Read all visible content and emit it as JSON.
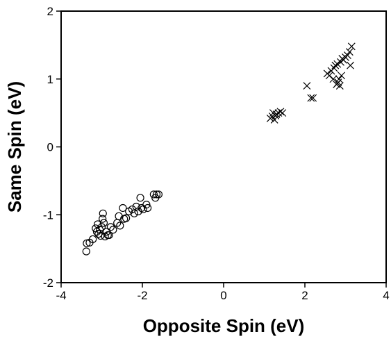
{
  "chart_data": {
    "type": "scatter",
    "title": "",
    "xlabel": "Opposite Spin (eV)",
    "ylabel": "Same Spin (eV)",
    "xlim": [
      -4,
      4
    ],
    "ylim": [
      -2,
      2
    ],
    "xticks": [
      -4,
      -2,
      0,
      2,
      4
    ],
    "yticks": [
      -2,
      -1,
      0,
      1,
      2
    ],
    "xtick_labels": [
      "-4",
      "-2",
      "0",
      "2",
      "4"
    ],
    "ytick_labels": [
      "-2",
      "-1",
      "0",
      "1",
      "2"
    ],
    "grid": false,
    "legend": "none",
    "series": [
      {
        "marker": "circle",
        "color": "#000000",
        "points": [
          [
            -3.38,
            -1.54
          ],
          [
            -3.37,
            -1.42
          ],
          [
            -3.3,
            -1.41
          ],
          [
            -3.22,
            -1.36
          ],
          [
            -3.15,
            -1.2
          ],
          [
            -3.12,
            -1.25
          ],
          [
            -3.1,
            -1.14
          ],
          [
            -3.08,
            -1.28
          ],
          [
            -3.05,
            -1.22
          ],
          [
            -3.03,
            -1.31
          ],
          [
            -3.0,
            -1.18
          ],
          [
            -2.98,
            -1.06
          ],
          [
            -2.97,
            -0.98
          ],
          [
            -2.95,
            -1.12
          ],
          [
            -2.92,
            -1.32
          ],
          [
            -2.88,
            -1.25
          ],
          [
            -2.85,
            -1.3
          ],
          [
            -2.82,
            -1.3
          ],
          [
            -2.78,
            -1.18
          ],
          [
            -2.72,
            -1.22
          ],
          [
            -2.62,
            -1.12
          ],
          [
            -2.58,
            -1.02
          ],
          [
            -2.55,
            -1.16
          ],
          [
            -2.48,
            -0.9
          ],
          [
            -2.45,
            -1.06
          ],
          [
            -2.4,
            -1.05
          ],
          [
            -2.33,
            -0.95
          ],
          [
            -2.25,
            -0.92
          ],
          [
            -2.2,
            -0.98
          ],
          [
            -2.15,
            -0.88
          ],
          [
            -2.1,
            -0.95
          ],
          [
            -2.05,
            -0.75
          ],
          [
            -2.02,
            -0.9
          ],
          [
            -1.98,
            -0.92
          ],
          [
            -1.9,
            -0.85
          ],
          [
            -1.87,
            -0.9
          ],
          [
            -1.72,
            -0.7
          ],
          [
            -1.68,
            -0.75
          ],
          [
            -1.65,
            -0.7
          ],
          [
            -1.6,
            -0.7
          ]
        ]
      },
      {
        "marker": "x",
        "color": "#000000",
        "points": [
          [
            1.15,
            0.42
          ],
          [
            1.2,
            0.45
          ],
          [
            1.22,
            0.5
          ],
          [
            1.25,
            0.4
          ],
          [
            1.28,
            0.46
          ],
          [
            1.3,
            0.48
          ],
          [
            1.35,
            0.5
          ],
          [
            1.4,
            0.52
          ],
          [
            1.45,
            0.5
          ],
          [
            2.05,
            0.9
          ],
          [
            2.15,
            0.72
          ],
          [
            2.2,
            0.72
          ],
          [
            2.55,
            1.08
          ],
          [
            2.6,
            1.05
          ],
          [
            2.65,
            1.12
          ],
          [
            2.7,
            1.0
          ],
          [
            2.72,
            1.16
          ],
          [
            2.75,
            1.2
          ],
          [
            2.78,
            0.92
          ],
          [
            2.8,
            1.22
          ],
          [
            2.82,
            0.95
          ],
          [
            2.84,
            1.0
          ],
          [
            2.86,
            0.9
          ],
          [
            2.88,
            1.25
          ],
          [
            2.9,
            1.05
          ],
          [
            2.92,
            1.3
          ],
          [
            2.95,
            1.28
          ],
          [
            3.0,
            1.32
          ],
          [
            3.05,
            1.35
          ],
          [
            3.1,
            1.4
          ],
          [
            3.12,
            1.2
          ],
          [
            3.15,
            1.48
          ]
        ]
      }
    ]
  }
}
